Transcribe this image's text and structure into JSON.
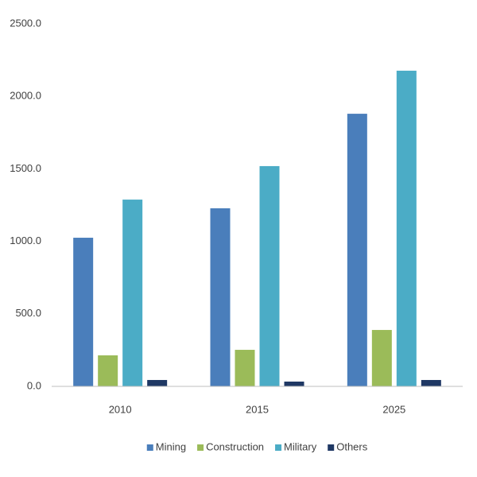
{
  "chart_data": {
    "type": "bar",
    "categories": [
      "2010",
      "2015",
      "2025"
    ],
    "series": [
      {
        "name": "Mining",
        "color": "#4a7ebb",
        "values": [
          1025,
          1228,
          1880
        ]
      },
      {
        "name": "Construction",
        "color": "#9bbb59",
        "values": [
          214,
          252,
          389
        ]
      },
      {
        "name": "Military",
        "color": "#4bacc6",
        "values": [
          1288,
          1519,
          2177
        ]
      },
      {
        "name": "Others",
        "color": "#1f3864",
        "values": [
          44,
          33,
          44
        ]
      }
    ],
    "ylim": [
      0,
      2500
    ],
    "yticks": [
      {
        "value": 0,
        "label": "0.0"
      },
      {
        "value": 500,
        "label": "500.0"
      },
      {
        "value": 1000,
        "label": "1000.0"
      },
      {
        "value": 1500,
        "label": "1500.0"
      },
      {
        "value": 2000,
        "label": "2000.0"
      },
      {
        "value": 2500,
        "label": "2500.0"
      }
    ],
    "grid": false,
    "legend": "bottom"
  }
}
